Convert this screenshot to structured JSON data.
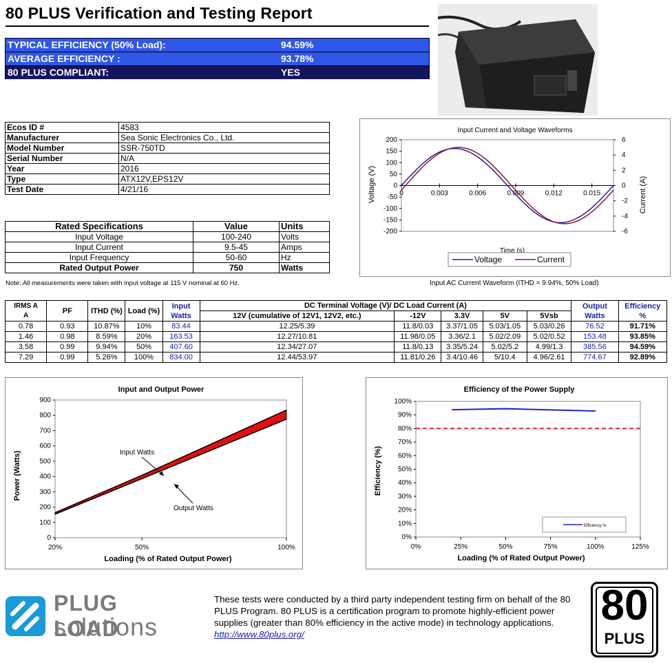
{
  "report": {
    "title": "80 PLUS Verification and Testing Report"
  },
  "summary": [
    {
      "label": "TYPICAL EFFICIENCY (50% Load):",
      "value": "94.59%"
    },
    {
      "label": "AVERAGE EFFICIENCY :",
      "value": "93.78%"
    },
    {
      "label": "80 PLUS COMPLIANT:",
      "value": "YES"
    }
  ],
  "info": [
    {
      "key": "Ecos ID #",
      "value": "4583"
    },
    {
      "key": "Manufacturer",
      "value": "Sea Sonic Electronics Co., Ltd."
    },
    {
      "key": "Model Number",
      "value": "SSR-750TD"
    },
    {
      "key": "Serial Number",
      "value": "N/A"
    },
    {
      "key": "Year",
      "value": "2016"
    },
    {
      "key": "Type",
      "value": "ATX12V,EPS12V"
    },
    {
      "key": "Test Date",
      "value": "4/21/16"
    }
  ],
  "specs": {
    "headers": [
      "Rated Specifications",
      "Value",
      "Units"
    ],
    "rows": [
      {
        "name": "Input Voltage",
        "value": "100-240",
        "unit": "Volts"
      },
      {
        "name": "Input Current",
        "value": "9.5-45",
        "unit": "Amps"
      },
      {
        "name": "Input Frequency",
        "value": "50-60",
        "unit": "Hz"
      },
      {
        "name": "Rated Output Power",
        "value": "750",
        "unit": "Watts"
      }
    ]
  },
  "note": "Note: All measurements were taken with input voltage at 115 V nominal at 60 Hz.",
  "wave_caption": "Input AC Current Waveform (ITHD = 9.94%, 50% Load)",
  "data_table": {
    "h_irms": "IRMS A",
    "h_irms_unit": "A",
    "h_pf": "PF",
    "h_ithd": "ITHD (%)",
    "h_load": "Load (%)",
    "h_input": "Input Watts",
    "h_dc": "DC Terminal Voltage (V)/ DC Load Current (A)",
    "h_12v": "12V (cumulative of 12V1, 12V2, etc.)",
    "h_m12": "-12V",
    "h_33": "3.3V",
    "h_5": "5V",
    "h_5sb": "5Vsb",
    "h_output": "Output Watts",
    "h_eff": "Efficiency %",
    "rows": [
      {
        "irms": "0.78",
        "pf": "0.93",
        "ithd": "10.87%",
        "load": "10%",
        "input": "83.44",
        "v12": "12.25/5.39",
        "vm12": "11.8/0.03",
        "v33": "3.37/1.05",
        "v5": "5.03/1.05",
        "v5sb": "5.03/0.26",
        "output": "76.52",
        "eff": "91.71%"
      },
      {
        "irms": "1.46",
        "pf": "0.98",
        "ithd": "8.59%",
        "load": "20%",
        "input": "163.53",
        "v12": "12.27/10.81",
        "vm12": "11.98/0.05",
        "v33": "3.36/2.1",
        "v5": "5.02/2.09",
        "v5sb": "5.02/0.52",
        "output": "153.48",
        "eff": "93.85%"
      },
      {
        "irms": "3.58",
        "pf": "0.99",
        "ithd": "9.94%",
        "load": "50%",
        "input": "407.60",
        "v12": "12.34/27.07",
        "vm12": "11.8/0.13",
        "v33": "3.35/5.24",
        "v5": "5.02/5.2",
        "v5sb": "4.99/1.3",
        "output": "385.56",
        "eff": "94.59%"
      },
      {
        "irms": "7.29",
        "pf": "0.99",
        "ithd": "5.26%",
        "load": "100%",
        "input": "834.00",
        "v12": "12.44/53.97",
        "vm12": "11.81/0.26",
        "v33": "3.4/10.46",
        "v5": "5/10.4",
        "v5sb": "4.96/2.61",
        "output": "774.67",
        "eff": "92.89%"
      }
    ]
  },
  "chart_data": [
    {
      "type": "line",
      "title": "Input Current and Voltage Waveforms",
      "xlabel": "Time (s)",
      "ylabel": "Voltage (V)",
      "y2label": "Current (A)",
      "xlim": [
        0,
        0.0167
      ],
      "ylim": [
        -200,
        200
      ],
      "y2lim": [
        -6,
        6
      ],
      "x_ticks": [
        "0",
        "0.003",
        "0.006",
        "0.009",
        "0.012",
        "0.015"
      ],
      "y_ticks": [
        "200",
        "150",
        "100",
        "50",
        "0",
        "-50",
        "-100",
        "-150",
        "-200"
      ],
      "y2_ticks": [
        "6",
        "4",
        "2",
        "0",
        "-2",
        "-4",
        "-6"
      ],
      "legend": "bottom",
      "series": [
        {
          "name": "Voltage",
          "color": "#1f1f9e",
          "amplitude": 162,
          "phase": 0.0
        },
        {
          "name": "Current",
          "color": "#8b1a1a",
          "amplitude": 5.0,
          "phase": 0.25
        }
      ]
    },
    {
      "type": "line",
      "title": "Input and Output Power",
      "xlabel": "Loading (% of Rated Output Power)",
      "ylabel": "Power (Watts)",
      "ylim": [
        0,
        900
      ],
      "x_ticks": [
        "20%",
        "50%",
        "100%"
      ],
      "y_ticks": [
        "0",
        "100",
        "200",
        "300",
        "400",
        "500",
        "600",
        "700",
        "800",
        "900"
      ],
      "annotations": [
        "Input Watts",
        "Output Watts"
      ],
      "x": [
        20,
        50,
        100
      ],
      "series": [
        {
          "name": "Input Watts",
          "values": [
            163.53,
            407.6,
            834.0
          ]
        },
        {
          "name": "Output Watts",
          "values": [
            153.48,
            385.56,
            774.67
          ]
        }
      ]
    },
    {
      "type": "line",
      "title": "Efficiency of the Power Supply",
      "xlabel": "Loading (% of Rated Output Power)",
      "ylabel": "Efficiency (%)",
      "xlim": [
        0,
        125
      ],
      "ylim": [
        0,
        100
      ],
      "x_ticks": [
        "0%",
        "25%",
        "50%",
        "75%",
        "100%",
        "125%"
      ],
      "y_ticks": [
        "100%",
        "90%",
        "80%",
        "70%",
        "60%",
        "50%",
        "40%",
        "30%",
        "20%",
        "10%",
        "0%"
      ],
      "legend": "bottom-right",
      "threshold": 80,
      "x": [
        20,
        50,
        100
      ],
      "series": [
        {
          "name": "Efficiency %",
          "values": [
            93.85,
            94.59,
            92.89
          ],
          "color": "#1a22c8"
        }
      ]
    }
  ],
  "footer": {
    "logo_line1": "PLUG LOAD",
    "logo_line2": "solutions",
    "text": "These tests were conducted by a third party independent testing firm on behalf of the 80 PLUS Program. 80 PLUS is a certification program to promote highly-efficient power supplies (greater than 80% efficiency in the active mode) in technology applications.",
    "link": "http://www.80plus.org/",
    "badge_num": "80",
    "badge_word": "PLUS"
  }
}
